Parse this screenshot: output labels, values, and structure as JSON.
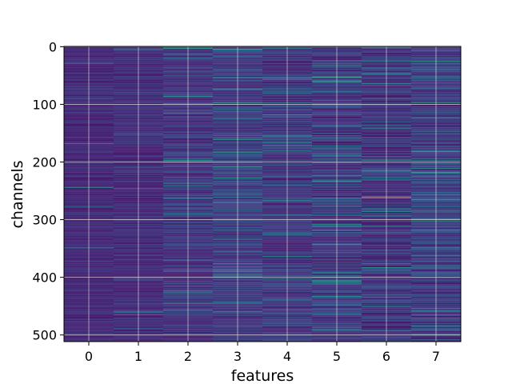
{
  "chart_data": {
    "type": "heatmap",
    "title": "",
    "xlabel": "features",
    "ylabel": "channels",
    "x_categories": [
      "0",
      "1",
      "2",
      "3",
      "4",
      "5",
      "6",
      "7"
    ],
    "y_ticks": [
      0,
      100,
      200,
      300,
      400,
      500
    ],
    "ylim": [
      511.5,
      -0.5
    ],
    "xlim": [
      -0.5,
      7.5
    ],
    "n_rows": 512,
    "n_cols": 8,
    "grid": true,
    "colormap": "viridis",
    "value_range": [
      0,
      1
    ],
    "column_profiles": [
      {
        "feature": "0",
        "base": 0.12,
        "spread": 0.08,
        "bright_fraction": 0.01
      },
      {
        "feature": "1",
        "base": 0.13,
        "spread": 0.09,
        "bright_fraction": 0.02
      },
      {
        "feature": "2",
        "base": 0.16,
        "spread": 0.12,
        "bright_fraction": 0.05
      },
      {
        "feature": "3",
        "base": 0.18,
        "spread": 0.13,
        "bright_fraction": 0.07
      },
      {
        "feature": "4",
        "base": 0.17,
        "spread": 0.14,
        "bright_fraction": 0.06
      },
      {
        "feature": "5",
        "base": 0.17,
        "spread": 0.16,
        "bright_fraction": 0.09
      },
      {
        "feature": "6",
        "base": 0.15,
        "spread": 0.15,
        "bright_fraction": 0.07
      },
      {
        "feature": "7",
        "base": 0.18,
        "spread": 0.15,
        "bright_fraction": 0.08
      }
    ],
    "highlights": [
      {
        "feature": "6",
        "channel": 262,
        "value": 1.0
      },
      {
        "feature": "6",
        "channel": 91,
        "value": 0.55
      },
      {
        "feature": "5",
        "channel": 60,
        "value": 0.5
      },
      {
        "feature": "6",
        "channel": 215,
        "value": 0.5
      },
      {
        "feature": "5",
        "channel": 400,
        "value": 0.45
      }
    ]
  },
  "colors": {
    "background": "#ffffff",
    "grid": "#e6e6e6",
    "colormap_stops": [
      "#440154",
      "#482878",
      "#3e4a89",
      "#31688e",
      "#26828e",
      "#1f9e89",
      "#35b779",
      "#6ece58",
      "#b5de2b",
      "#fde725"
    ]
  }
}
